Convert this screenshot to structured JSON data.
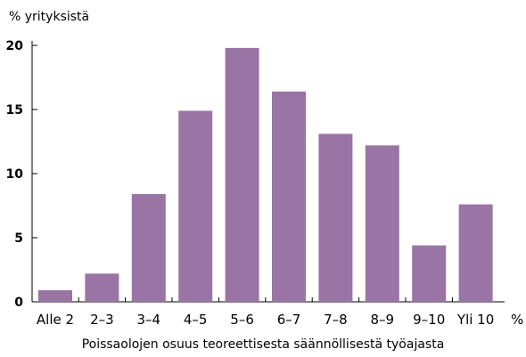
{
  "chart_data": {
    "type": "bar",
    "title": "",
    "ylabel": "% yrityksistä",
    "xlabel": "Poissaolojen osuus teoreettisesta säännöllisestä työajasta",
    "x_unit": "%",
    "categories": [
      "Alle 2",
      "2–3",
      "3–4",
      "4–5",
      "5–6",
      "6–7",
      "7–8",
      "8–9",
      "9–10",
      "Yli 10"
    ],
    "values": [
      0.9,
      2.2,
      8.4,
      14.9,
      19.8,
      16.4,
      13.1,
      12.2,
      4.4,
      7.6
    ],
    "ylim": [
      0,
      20
    ],
    "yticks": [
      "0",
      "5",
      "10",
      "15",
      "20"
    ],
    "grid": false,
    "bar_color": "#9a74a5"
  }
}
